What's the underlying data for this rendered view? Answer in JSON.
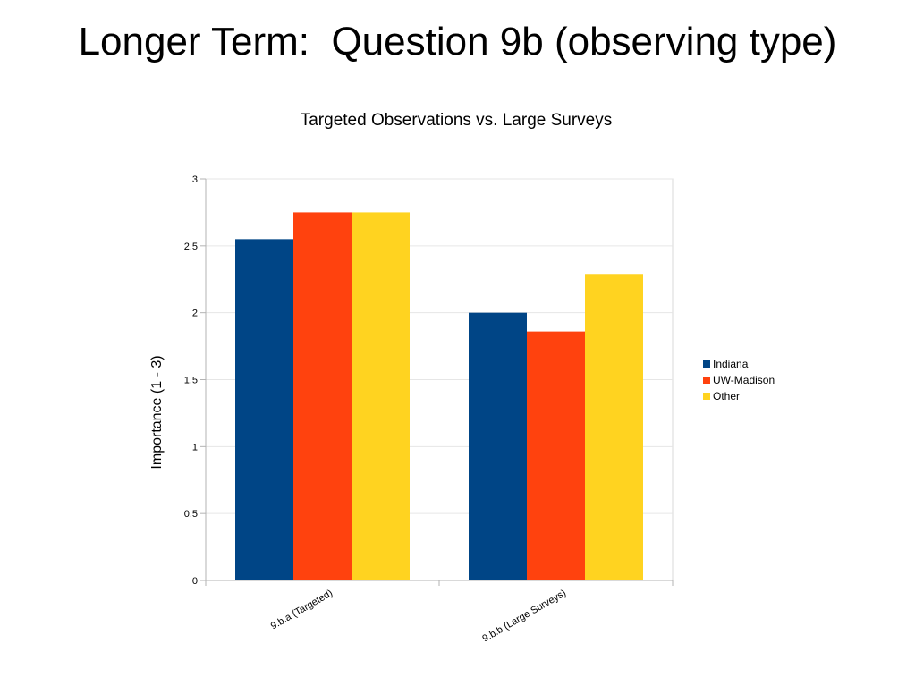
{
  "slide": {
    "title": "Longer Term:  Question 9b (observing type)"
  },
  "chart_data": {
    "type": "bar",
    "title": "Targeted Observations vs. Large Surveys",
    "xlabel": "",
    "ylabel": "Importance (1 - 3)",
    "categories": [
      "9.b.a (Targeted)",
      "9.b.b (Large Surveys)"
    ],
    "series": [
      {
        "name": "Indiana",
        "values": [
          2.55,
          2.0
        ],
        "color": "#004586"
      },
      {
        "name": "UW-Madison",
        "values": [
          2.75,
          1.86
        ],
        "color": "#ff420e"
      },
      {
        "name": "Other",
        "values": [
          2.75,
          2.29
        ],
        "color": "#ffd320"
      }
    ],
    "ylim": [
      0,
      3
    ],
    "yticks": [
      "0",
      "0.5",
      "1",
      "1.5",
      "2",
      "2.5",
      "3"
    ],
    "grid": true,
    "legend_position": "right"
  }
}
